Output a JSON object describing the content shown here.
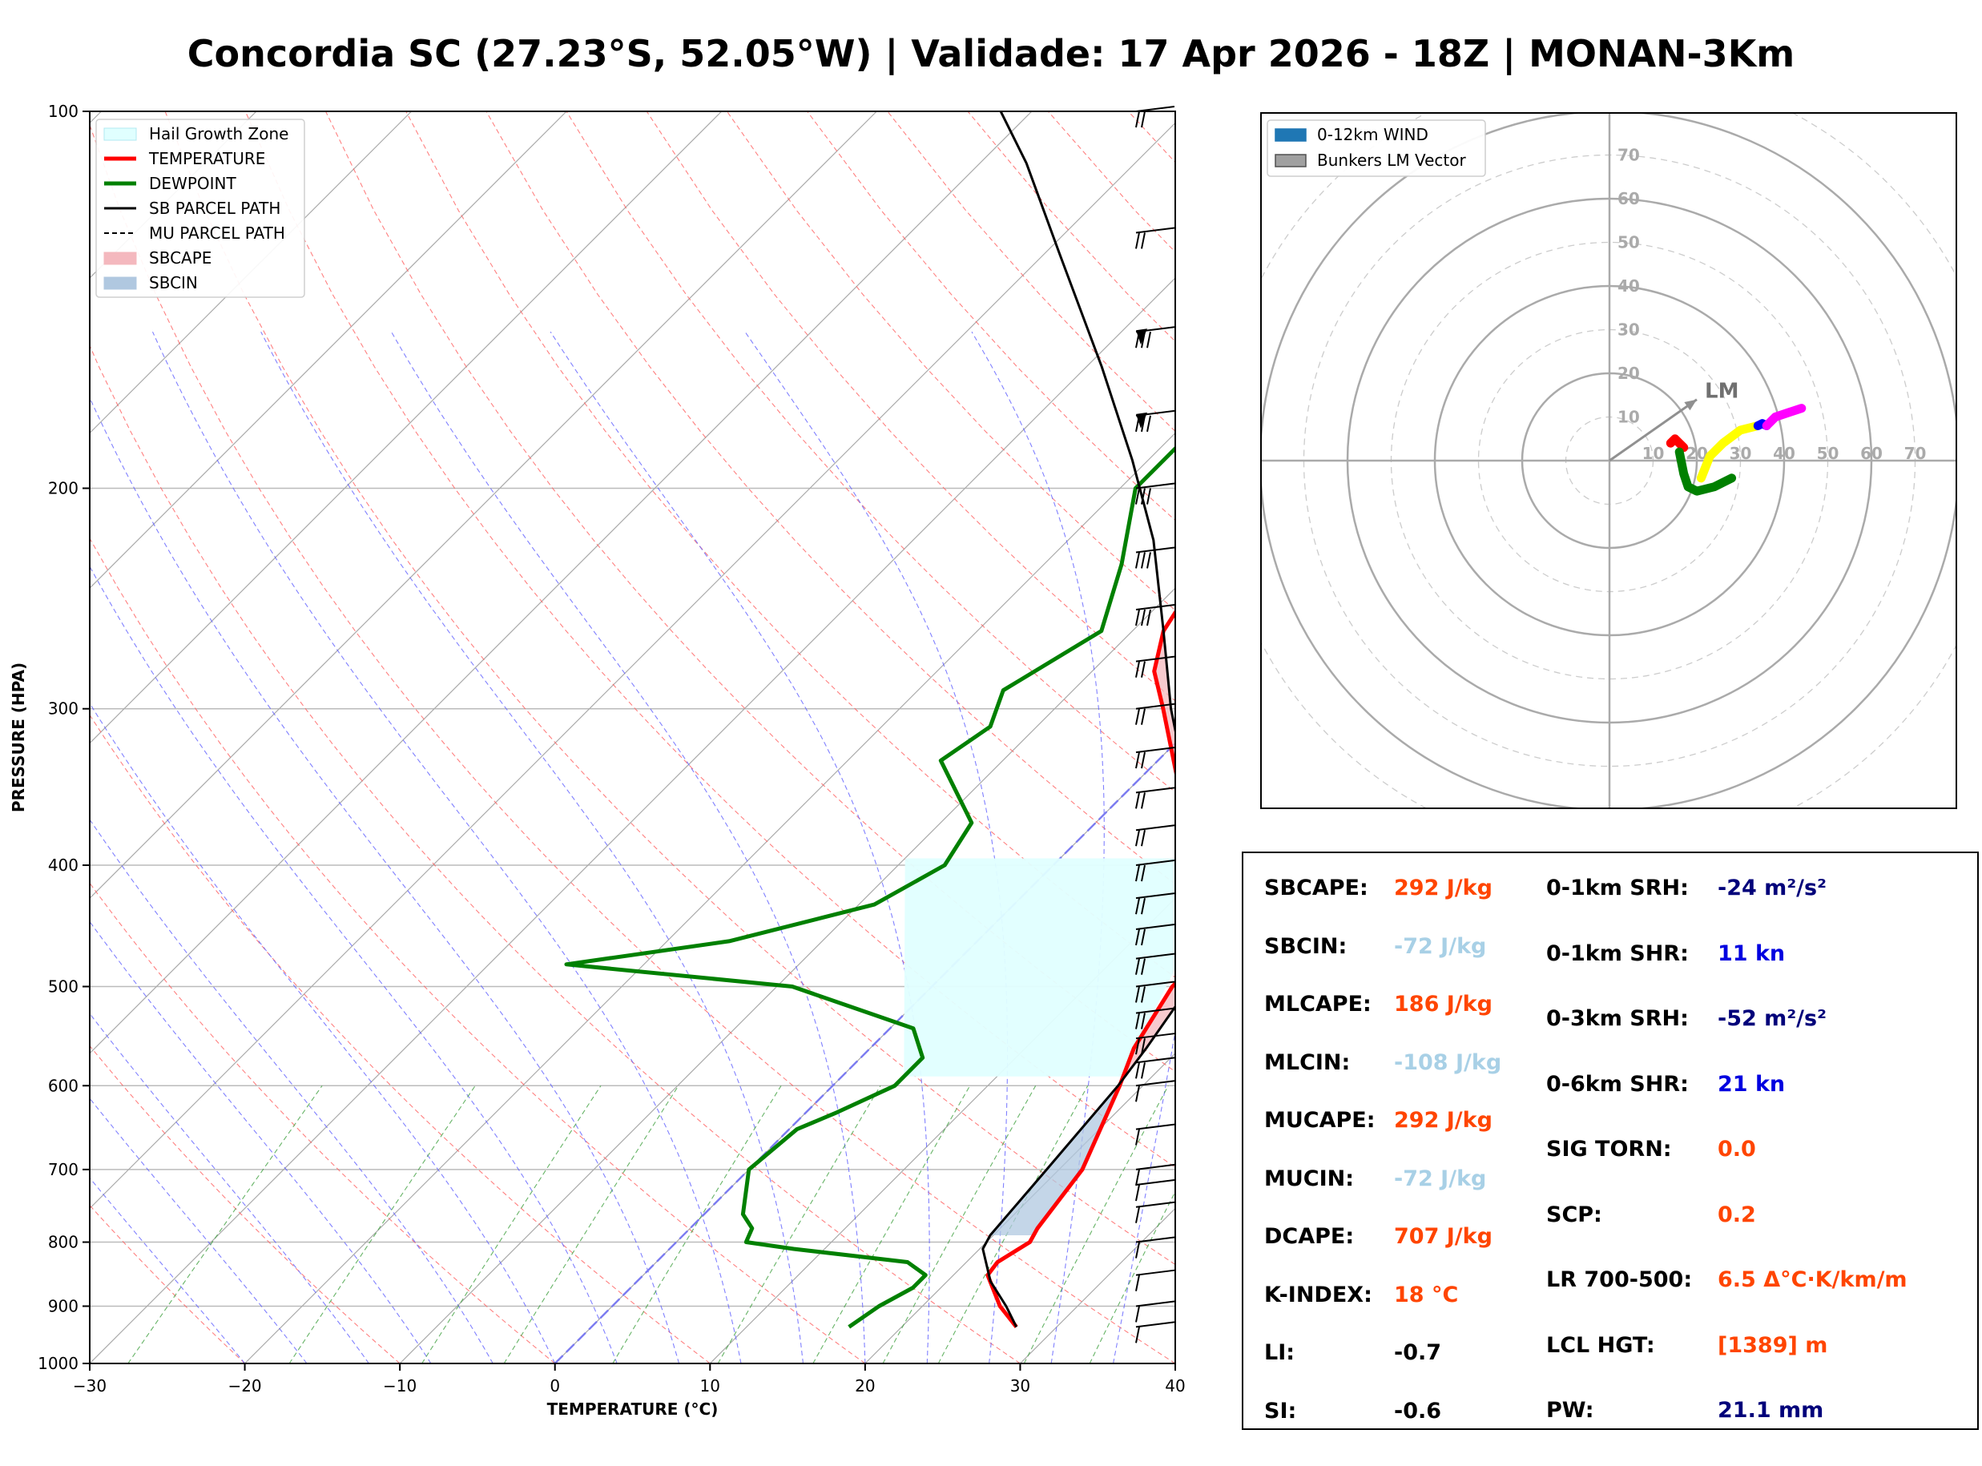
{
  "title": "Concordia SC (27.23°S, 52.05°W) | Validade: 17 Apr 2026 - 18Z | MONAN-3Km",
  "colors": {
    "temperature": "#ff0000",
    "dewpoint": "#008000",
    "parcel": "#000000",
    "sbcape": "#f4b8be",
    "sbcin": "#b0c8e0",
    "hail": "#e0ffff",
    "isotherm": "#555555",
    "dry_adiabat": "#ff6060",
    "moist_adiabat": "#6060ff",
    "mixing_ratio": "#40a040",
    "orange": "#ff4500",
    "lightblue": "#a8d0e6",
    "navy": "#00007a",
    "blue": "#0000e0",
    "black": "#000000"
  },
  "chart_data": [
    {
      "type": "line",
      "name": "skew-t",
      "xlabel": "TEMPERATURE (°C)",
      "ylabel": "PRESSURE (HPA)",
      "xlim": [
        -30,
        40
      ],
      "ylim": [
        1000,
        100
      ],
      "x_ticks": [
        -30,
        -20,
        -10,
        0,
        10,
        20,
        30,
        40
      ],
      "x_tick_labels": [
        "−30",
        "−20",
        "−10",
        "0",
        "10",
        "20",
        "30",
        "40"
      ],
      "y_ticks": [
        100,
        200,
        300,
        400,
        500,
        600,
        700,
        800,
        900,
        1000
      ],
      "y_tick_labels": [
        "100",
        "200",
        "300",
        "400",
        "500",
        "600",
        "700",
        "800",
        "900",
        "1000"
      ],
      "legend": [
        {
          "label": "Hail Growth Zone",
          "style": "patch",
          "color": "#e0ffff",
          "edge": "#b0e8f0"
        },
        {
          "label": "TEMPERATURE",
          "style": "line",
          "color": "#ff0000",
          "width": 5
        },
        {
          "label": "DEWPOINT",
          "style": "line",
          "color": "#008000",
          "width": 5
        },
        {
          "label": "SB PARCEL PATH",
          "style": "line",
          "color": "#000000",
          "width": 3
        },
        {
          "label": "MU PARCEL PATH",
          "style": "dash",
          "color": "#000000",
          "width": 2
        },
        {
          "label": "SBCAPE",
          "style": "patch",
          "color": "#f4b8be",
          "edge": "#f4b8be"
        },
        {
          "label": "SBCIN",
          "style": "patch",
          "color": "#b0c8e0",
          "edge": "#b0c8e0"
        }
      ],
      "series": [
        {
          "name": "TEMPERATURE",
          "points": [
            [
              935,
              27.4
            ],
            [
              900,
              25.0
            ],
            [
              850,
              22.2
            ],
            [
              830,
              22.0
            ],
            [
              800,
              22.8
            ],
            [
              780,
              22.4
            ],
            [
              700,
              21.5
            ],
            [
              600,
              18.5
            ],
            [
              560,
              17.0
            ],
            [
              500,
              15.5
            ],
            [
              460,
              15.5
            ],
            [
              450,
              15.2
            ],
            [
              420,
              12.8
            ],
            [
              400,
              10.0
            ],
            [
              350,
              3.5
            ],
            [
              300,
              -3.0
            ],
            [
              280,
              -6.0
            ],
            [
              260,
              -8.0
            ],
            [
              240,
              -9.0
            ],
            [
              215,
              -11.0
            ],
            [
              190,
              -13.0
            ],
            [
              160,
              -14.5
            ],
            [
              130,
              -17.5
            ],
            [
              110,
              -20.0
            ],
            [
              100,
              -22.0
            ]
          ]
        },
        {
          "name": "DEWPOINT",
          "points": [
            [
              935,
              16.6
            ],
            [
              900,
              17.2
            ],
            [
              870,
              18.2
            ],
            [
              850,
              18.2
            ],
            [
              830,
              16.2
            ],
            [
              810,
              8.0
            ],
            [
              800,
              4.5
            ],
            [
              780,
              4.0
            ],
            [
              760,
              2.5
            ],
            [
              700,
              0.0
            ],
            [
              650,
              0.5
            ],
            [
              630,
              2.0
            ],
            [
              600,
              4.0
            ],
            [
              570,
              4.0
            ],
            [
              540,
              1.5
            ],
            [
              500,
              -9.0
            ],
            [
              480,
              -25.0
            ],
            [
              460,
              -16.0
            ],
            [
              430,
              -9.0
            ],
            [
              400,
              -7.0
            ],
            [
              370,
              -8.0
            ],
            [
              330,
              -14.0
            ],
            [
              310,
              -13.0
            ],
            [
              290,
              -14.5
            ],
            [
              260,
              -12.0
            ],
            [
              230,
              -15.0
            ],
            [
              200,
              -19.0
            ],
            [
              180,
              -19.0
            ],
            [
              165,
              -20.0
            ],
            [
              150,
              -20.0
            ],
            [
              140,
              -19.5
            ],
            [
              125,
              -16.0
            ],
            [
              115,
              -13.5
            ],
            [
              100,
              -13.0
            ]
          ]
        },
        {
          "name": "SB PARCEL PATH",
          "points": [
            [
              935,
              27.4
            ],
            [
              900,
              25.4
            ],
            [
              860,
              22.8
            ],
            [
              810,
              20.2
            ],
            [
              790,
              19.8
            ],
            [
              700,
              19.2
            ],
            [
              600,
              18.4
            ],
            [
              560,
              17.8
            ],
            [
              500,
              16.6
            ],
            [
              440,
              14.4
            ],
            [
              400,
              10.0
            ],
            [
              350,
              4.0
            ],
            [
              300,
              -2.5
            ],
            [
              260,
              -8.0
            ],
            [
              220,
              -14.5
            ],
            [
              190,
              -21.0
            ],
            [
              160,
              -29.0
            ],
            [
              130,
              -39.0
            ],
            [
              110,
              -47.0
            ],
            [
              100,
              -52.0
            ]
          ]
        }
      ],
      "shaded_regions": [
        {
          "name": "SBCAPE",
          "pressure_range": [
            600,
            260
          ],
          "between": [
            "SB PARCEL PATH",
            "TEMPERATURE"
          ]
        },
        {
          "name": "SBCIN",
          "pressure_range": [
            790,
            600
          ],
          "between": [
            "SB PARCEL PATH",
            "TEMPERATURE"
          ]
        },
        {
          "name": "Hail Growth Zone",
          "pressure_range": [
            590,
            395
          ],
          "x_range_at_bottom": [
            4,
            18
          ],
          "x_range_at_top": [
            -10,
            11
          ]
        }
      ],
      "wind_barbs_pressures": [
        935,
        900,
        850,
        800,
        750,
        720,
        700,
        650,
        600,
        575,
        550,
        525,
        500,
        475,
        450,
        425,
        400,
        375,
        350,
        325,
        300,
        275,
        250,
        225,
        200,
        175,
        150,
        125,
        100
      ]
    },
    {
      "type": "line",
      "name": "hodograph",
      "rings": [
        10,
        20,
        30,
        40,
        50,
        60,
        70
      ],
      "ring_labels": [
        "10",
        "20",
        "30",
        "40",
        "50",
        "60",
        "70"
      ],
      "legend": [
        {
          "label": "0-12km WIND",
          "color": "#1f77b4"
        },
        {
          "label": "Bunkers LM Vector",
          "color": "#a0a0a0"
        }
      ],
      "lm_label": "LM",
      "lm_vector": [
        20,
        14
      ],
      "segments": [
        {
          "name": "0-1km",
          "color": "#ff0000",
          "points": [
            [
              14,
              4
            ],
            [
              15,
              5
            ],
            [
              16,
              4
            ],
            [
              17,
              3
            ]
          ]
        },
        {
          "name": "1-3km",
          "color": "#008000",
          "points": [
            [
              16,
              2
            ],
            [
              17,
              -3
            ],
            [
              18,
              -6
            ],
            [
              20,
              -7
            ],
            [
              24,
              -6
            ],
            [
              28,
              -4
            ]
          ]
        },
        {
          "name": "3-6km",
          "color": "#ffff00",
          "points": [
            [
              21,
              -4
            ],
            [
              23,
              1
            ],
            [
              26,
              4
            ],
            [
              30,
              7
            ],
            [
              34,
              8
            ]
          ]
        },
        {
          "name": "6-9km",
          "color": "#0000ff",
          "points": [
            [
              34,
              8
            ],
            [
              35,
              8.5
            ],
            [
              36,
              8
            ]
          ]
        },
        {
          "name": "9-12km",
          "color": "#ff00ff",
          "points": [
            [
              36,
              8
            ],
            [
              38,
              10
            ],
            [
              41,
              11
            ],
            [
              44,
              12
            ]
          ]
        }
      ]
    }
  ],
  "indices": {
    "left": [
      {
        "label": "SBCAPE:",
        "value": "292 J/kg",
        "color": "#ff4500"
      },
      {
        "label": "SBCIN:",
        "value": "-72 J/kg",
        "color": "#a8d0e6"
      },
      {
        "label": "MLCAPE:",
        "value": "186 J/kg",
        "color": "#ff4500"
      },
      {
        "label": "MLCIN:",
        "value": "-108 J/kg",
        "color": "#a8d0e6"
      },
      {
        "label": "MUCAPE:",
        "value": "292 J/kg",
        "color": "#ff4500"
      },
      {
        "label": "MUCIN:",
        "value": "-72 J/kg",
        "color": "#a8d0e6"
      },
      {
        "label": "DCAPE:",
        "value": "707 J/kg",
        "color": "#ff4500"
      },
      {
        "label": "K-INDEX:",
        "value": "18 °C",
        "color": "#ff4500"
      },
      {
        "label": "LI:",
        "value": "-0.7",
        "color": "#000000"
      },
      {
        "label": "SI:",
        "value": "-0.6",
        "color": "#000000"
      }
    ],
    "right": [
      {
        "label": "0-1km SRH:",
        "value": "-24 m²/s²",
        "color": "#00007a"
      },
      {
        "label": "0-1km SHR:",
        "value": "11 kn",
        "color": "#0000e0"
      },
      {
        "label": "0-3km SRH:",
        "value": "-52 m²/s²",
        "color": "#00007a"
      },
      {
        "label": "0-6km SHR:",
        "value": "21 kn",
        "color": "#0000e0"
      },
      {
        "label": "SIG TORN:",
        "value": "0.0",
        "color": "#ff4500"
      },
      {
        "label": "SCP:",
        "value": "0.2",
        "color": "#ff4500"
      },
      {
        "label": "LR 700-500:",
        "value": "6.5 Δ°C·K/km/m",
        "color": "#ff4500"
      },
      {
        "label": "LCL HGT:",
        "value": "[1389] m",
        "color": "#ff4500"
      },
      {
        "label": "PW:",
        "value": "21.1 mm",
        "color": "#00007a"
      }
    ]
  }
}
